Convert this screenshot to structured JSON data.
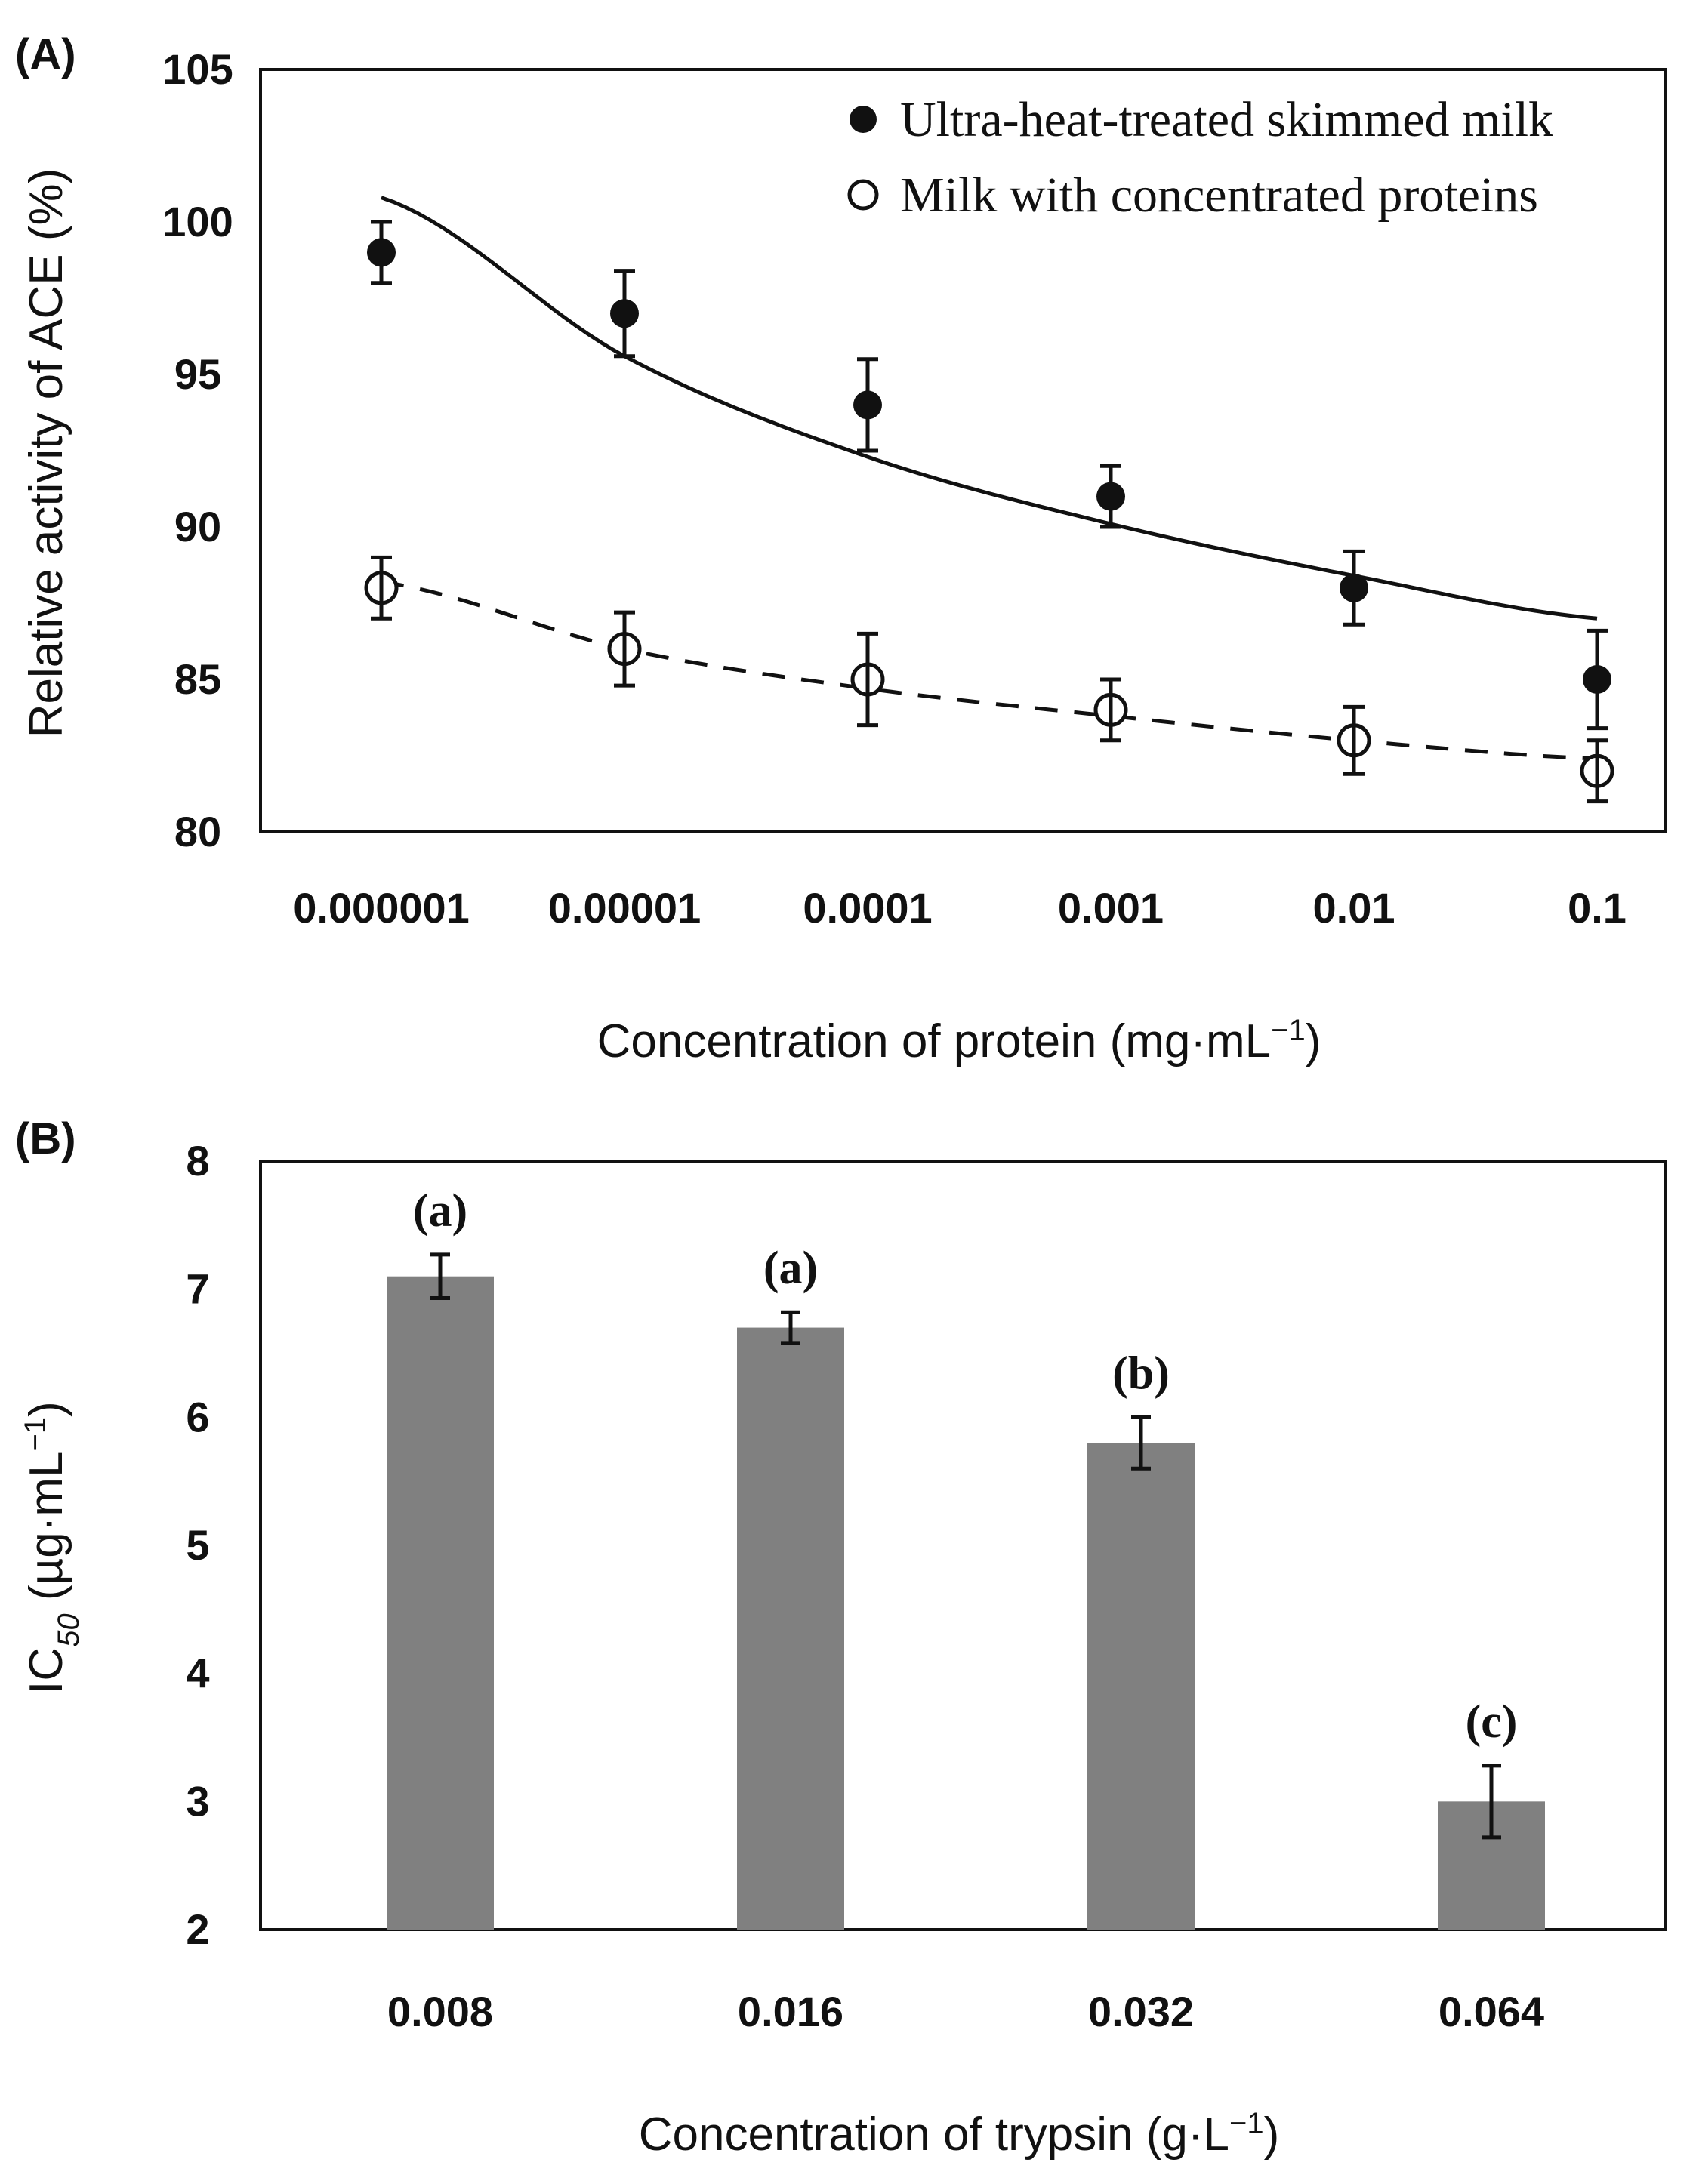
{
  "chart_data": [
    {
      "panel": "(A)",
      "type": "line",
      "xlabel": "Concentration of protein (mg·mL",
      "xlabel_sup": "−1",
      "xlabel_end": ")",
      "ylabel": "Relative activity of ACE (%)",
      "ylim": [
        80,
        105
      ],
      "yticks": [
        "80",
        "85",
        "90",
        "95",
        "100",
        "105"
      ],
      "categories": [
        "0.000001",
        "0.00001",
        "0.0001",
        "0.001",
        "0.01",
        "0.1"
      ],
      "series": [
        {
          "name": "Ultra-heat-treated skimmed milk",
          "marker": "filled-circle",
          "values": [
            99,
            97,
            94,
            91,
            88,
            85
          ],
          "errors": [
            1.0,
            1.4,
            1.5,
            1.0,
            1.2,
            1.6
          ],
          "fit": "solid",
          "fit_values": [
            100.8,
            95.6,
            92.3,
            90.1,
            88.4,
            87.0
          ]
        },
        {
          "name": "Milk with concentrated proteins",
          "marker": "open-circle",
          "values": [
            88,
            86,
            85,
            84,
            83,
            82
          ],
          "errors": [
            1.0,
            1.2,
            1.5,
            1.0,
            1.1,
            1.0
          ],
          "fit": "dashed",
          "fit_values": [
            88.2,
            86.0,
            84.7,
            83.8,
            83.0,
            82.4
          ]
        }
      ]
    },
    {
      "panel": "(B)",
      "type": "bar",
      "xlabel": "Concentration of trypsin (g·L",
      "xlabel_sup": "−1",
      "xlabel_end": ")",
      "ylabel_main": "IC",
      "ylabel_sub": "50",
      "ylabel_rest": " (µg·mL",
      "ylabel_sup": "−1",
      "ylabel_end": ")",
      "ylim": [
        2,
        8
      ],
      "yticks": [
        "2",
        "3",
        "4",
        "5",
        "6",
        "7",
        "8"
      ],
      "categories": [
        "0.008",
        "0.016",
        "0.032",
        "0.064"
      ],
      "values": [
        7.1,
        6.7,
        5.8,
        3.0
      ],
      "errors": [
        0.17,
        0.12,
        0.2,
        0.28
      ],
      "significance": [
        "(a)",
        "(a)",
        "(b)",
        "(c)"
      ],
      "bar_color": "#808080"
    }
  ]
}
